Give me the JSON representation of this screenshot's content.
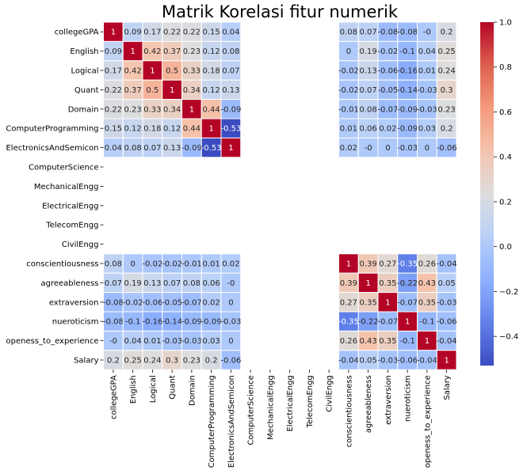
{
  "chart_data": {
    "type": "heatmap",
    "title": "Matrik Korelasi fitur numerik",
    "xlabel": "",
    "ylabel": "",
    "labels": [
      "collegeGPA",
      "English",
      "Logical",
      "Quant",
      "Domain",
      "ComputerProgramming",
      "ElectronicsAndSemicon",
      "ComputerScience",
      "MechanicalEngg",
      "ElectricalEngg",
      "TelecomEngg",
      "CivilEngg",
      "conscientiousness",
      "agreeableness",
      "extraversion",
      "nueroticism",
      "openess_to_experience",
      "Salary"
    ],
    "values": [
      [
        1,
        0.09,
        0.17,
        0.22,
        0.22,
        0.15,
        0.04,
        null,
        null,
        null,
        null,
        null,
        0.08,
        0.07,
        -0.08,
        -0.08,
        0,
        0.2
      ],
      [
        0.09,
        1,
        0.42,
        0.37,
        0.23,
        0.12,
        0.08,
        null,
        null,
        null,
        null,
        null,
        0,
        0.19,
        -0.02,
        -0.1,
        0.04,
        0.25
      ],
      [
        0.17,
        0.42,
        1,
        0.5,
        0.33,
        0.18,
        0.07,
        null,
        null,
        null,
        null,
        null,
        -0.02,
        0.13,
        -0.06,
        -0.16,
        0.01,
        0.24
      ],
      [
        0.22,
        0.37,
        0.5,
        1,
        0.34,
        0.12,
        0.13,
        null,
        null,
        null,
        null,
        null,
        -0.02,
        0.07,
        -0.05,
        -0.14,
        -0.03,
        0.3
      ],
      [
        0.22,
        0.23,
        0.33,
        0.34,
        1,
        0.44,
        -0.09,
        null,
        null,
        null,
        null,
        null,
        -0.01,
        0.08,
        -0.07,
        -0.09,
        -0.03,
        0.23
      ],
      [
        0.15,
        0.12,
        0.18,
        0.12,
        0.44,
        1,
        -0.53,
        null,
        null,
        null,
        null,
        null,
        0.01,
        0.06,
        0.02,
        -0.09,
        0.03,
        0.2
      ],
      [
        0.04,
        0.08,
        0.07,
        0.13,
        -0.09,
        -0.53,
        1,
        null,
        null,
        null,
        null,
        null,
        0.02,
        0,
        0,
        -0.03,
        0,
        -0.06
      ],
      [
        null,
        null,
        null,
        null,
        null,
        null,
        null,
        null,
        null,
        null,
        null,
        null,
        null,
        null,
        null,
        null,
        null,
        null
      ],
      [
        null,
        null,
        null,
        null,
        null,
        null,
        null,
        null,
        null,
        null,
        null,
        null,
        null,
        null,
        null,
        null,
        null,
        null
      ],
      [
        null,
        null,
        null,
        null,
        null,
        null,
        null,
        null,
        null,
        null,
        null,
        null,
        null,
        null,
        null,
        null,
        null,
        null
      ],
      [
        null,
        null,
        null,
        null,
        null,
        null,
        null,
        null,
        null,
        null,
        null,
        null,
        null,
        null,
        null,
        null,
        null,
        null
      ],
      [
        null,
        null,
        null,
        null,
        null,
        null,
        null,
        null,
        null,
        null,
        null,
        null,
        null,
        null,
        null,
        null,
        null,
        null
      ],
      [
        0.08,
        0,
        -0.02,
        -0.02,
        -0.01,
        0.01,
        0.02,
        null,
        null,
        null,
        null,
        null,
        1,
        0.39,
        0.27,
        -0.35,
        0.26,
        -0.04
      ],
      [
        0.07,
        0.19,
        0.13,
        0.07,
        0.08,
        0.06,
        0,
        null,
        null,
        null,
        null,
        null,
        0.39,
        1,
        0.35,
        -0.22,
        0.43,
        0.05
      ],
      [
        -0.08,
        -0.02,
        -0.06,
        -0.05,
        -0.07,
        0.02,
        0,
        null,
        null,
        null,
        null,
        null,
        0.27,
        0.35,
        1,
        -0.07,
        0.35,
        -0.03
      ],
      [
        -0.08,
        -0.1,
        -0.16,
        -0.14,
        -0.09,
        -0.09,
        -0.03,
        null,
        null,
        null,
        null,
        null,
        -0.35,
        -0.22,
        -0.07,
        1,
        -0.1,
        -0.06
      ],
      [
        0,
        0.04,
        0.01,
        -0.03,
        -0.03,
        0.03,
        0,
        null,
        null,
        null,
        null,
        null,
        0.26,
        0.43,
        0.35,
        -0.1,
        1,
        -0.04
      ],
      [
        0.2,
        0.25,
        0.24,
        0.3,
        0.23,
        0.2,
        -0.06,
        null,
        null,
        null,
        null,
        null,
        -0.04,
        0.05,
        -0.03,
        -0.06,
        -0.04,
        1
      ]
    ],
    "colormap": "coolwarm",
    "vmin": -0.53,
    "vmax": 1,
    "colorbar_ticks": [
      "1.0",
      "0.8",
      "0.6",
      "0.4",
      "0.2",
      "0.0",
      "−0.2",
      "−0.4"
    ],
    "colorbar_tick_values": [
      1.0,
      0.8,
      0.6,
      0.4,
      0.2,
      0.0,
      -0.2,
      -0.4
    ],
    "legend_position": "right",
    "grid": true
  }
}
